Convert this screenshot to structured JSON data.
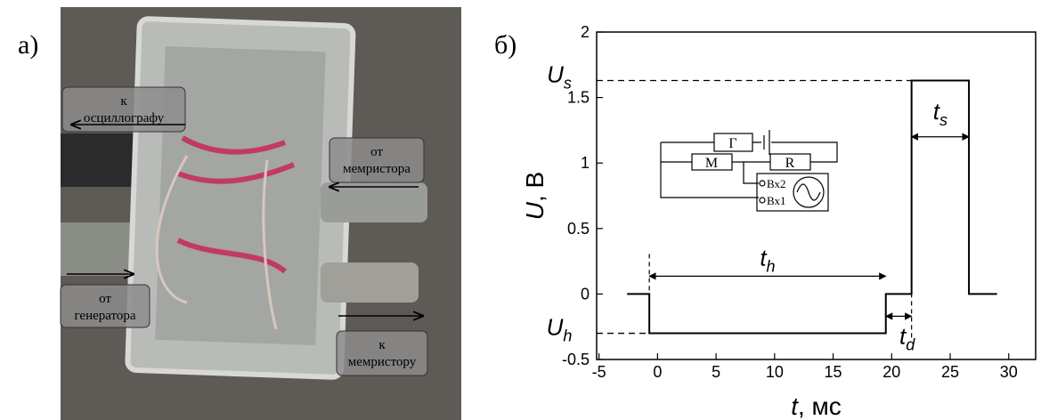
{
  "panel_a": {
    "label": "а)",
    "photo_labels": [
      "к\nосциллографу",
      "от\nмемристора",
      "от\nгенератора",
      "к\nмемристору"
    ]
  },
  "chart_data": {
    "type": "line",
    "panel_label": "б)",
    "xlabel": {
      "symbol": "t",
      "unit": ", мс"
    },
    "ylabel": {
      "symbol": "U",
      "unit": ", В"
    },
    "x": [
      -2.6,
      -0.7,
      -0.7,
      19.5,
      19.5,
      21.7,
      21.7,
      26.6,
      26.6,
      29
    ],
    "series": [
      {
        "color": "#000000",
        "values": [
          0,
          0,
          -0.3,
          -0.3,
          0,
          0,
          1.63,
          1.63,
          0,
          0
        ]
      }
    ],
    "xlim": [
      -5.2,
      32.3
    ],
    "ylim": [
      -0.5,
      2
    ],
    "xticks": [
      -5,
      0,
      5,
      10,
      15,
      20,
      25,
      30
    ],
    "yticks": [
      -0.5,
      0,
      0.5,
      1,
      1.5,
      2
    ],
    "annotations": {
      "Us": {
        "text": "U",
        "sub": "s"
      },
      "Uh": {
        "text": "U",
        "sub": "h"
      },
      "th": {
        "text": "t",
        "sub": "h"
      },
      "td": {
        "text": "t",
        "sub": "d"
      },
      "ts": {
        "text": "t",
        "sub": "s"
      }
    },
    "circuit": {
      "generator": "Г",
      "memristor": "M",
      "resistor": "R",
      "in2": "Вх2",
      "in1": "Вх1"
    }
  }
}
